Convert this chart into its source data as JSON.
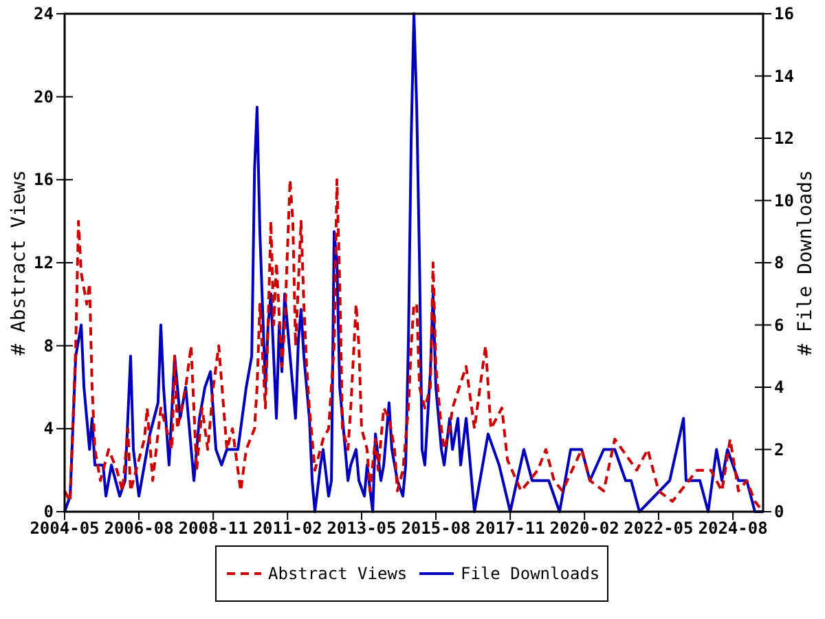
{
  "chart_data": {
    "type": "line",
    "ylabel": "# Abstract Views",
    "y2label": "# File Downloads",
    "xlim": [
      "2004-05",
      "2025-07"
    ],
    "xticks": [
      "2004-05",
      "2006-08",
      "2008-11",
      "2011-02",
      "2013-05",
      "2015-08",
      "2017-11",
      "2020-02",
      "2022-05",
      "2024-08"
    ],
    "ylim": [
      0,
      24
    ],
    "yticks": [
      0,
      4,
      8,
      12,
      16,
      20,
      24
    ],
    "y2lim": [
      0,
      16
    ],
    "y2ticks": [
      0,
      2,
      4,
      6,
      8,
      10,
      12,
      14,
      16
    ],
    "grid": false,
    "legend": "bottom",
    "series": [
      {
        "name": "Abstract Views",
        "color": "#cc0000",
        "line_style": "dashed",
        "axis": "y",
        "x": [
          "2004-05",
          "2004-07",
          "2004-09",
          "2004-10",
          "2004-11",
          "2005-01",
          "2005-02",
          "2005-03",
          "2005-04",
          "2005-06",
          "2005-07",
          "2005-09",
          "2005-12",
          "2006-02",
          "2006-04",
          "2006-05",
          "2006-07",
          "2006-10",
          "2006-11",
          "2007-01",
          "2007-04",
          "2007-08",
          "2007-09",
          "2007-10",
          "2008-01",
          "2008-03",
          "2008-05",
          "2008-07",
          "2008-09",
          "2008-11",
          "2009-01",
          "2009-04",
          "2009-06",
          "2009-09",
          "2009-11",
          "2010-02",
          "2010-03",
          "2010-04",
          "2010-06",
          "2010-07",
          "2010-08",
          "2010-09",
          "2010-10",
          "2010-12",
          "2011-01",
          "2011-03",
          "2011-04",
          "2011-05",
          "2011-06",
          "2011-07",
          "2011-08",
          "2011-09",
          "2011-10",
          "2011-12",
          "2012-03",
          "2012-05",
          "2012-07",
          "2012-08",
          "2012-09",
          "2012-10",
          "2012-12",
          "2013-01",
          "2013-03",
          "2013-04",
          "2013-05",
          "2013-07",
          "2013-08",
          "2013-10",
          "2013-11",
          "2014-01",
          "2014-03",
          "2014-05",
          "2014-06",
          "2014-08",
          "2014-10",
          "2014-11",
          "2014-12",
          "2015-01",
          "2015-02",
          "2015-04",
          "2015-06",
          "2015-07",
          "2015-08",
          "2015-10",
          "2015-11",
          "2016-01",
          "2016-02",
          "2016-07",
          "2016-10",
          "2017-02",
          "2017-04",
          "2017-08",
          "2017-10",
          "2018-03",
          "2018-09",
          "2018-12",
          "2019-03",
          "2019-06",
          "2020-01",
          "2020-04",
          "2020-09",
          "2021-01",
          "2021-09",
          "2022-01",
          "2022-05",
          "2022-10",
          "2023-07",
          "2023-12",
          "2024-04",
          "2024-07",
          "2024-10",
          "2025-01",
          "2025-04",
          "2025-07"
        ],
        "values": [
          1,
          0.5,
          8,
          14,
          11.5,
          10,
          11,
          6,
          3,
          1.5,
          2,
          3,
          2,
          1,
          4,
          1,
          2,
          3.5,
          5,
          1.5,
          5,
          3,
          7.5,
          4,
          6,
          8,
          2,
          5,
          3,
          6,
          8,
          3,
          4,
          1,
          3,
          4,
          6,
          10,
          5,
          9,
          14,
          9,
          12,
          7,
          9,
          16,
          14,
          8,
          11,
          14,
          10,
          7,
          5,
          2,
          3.5,
          4,
          8,
          16,
          11,
          4,
          3,
          5,
          10,
          8,
          4,
          3,
          1,
          3.5,
          2,
          5,
          4.5,
          3,
          1,
          2,
          5,
          8,
          10,
          10,
          6,
          5,
          6,
          12,
          7,
          4,
          3,
          4,
          5,
          7,
          4,
          8,
          4,
          5,
          2.5,
          1,
          2,
          3,
          1.5,
          1,
          3,
          1.5,
          1,
          3.5,
          2,
          3,
          1,
          0.5,
          2,
          2,
          1,
          3.5,
          1,
          1.5,
          0.5,
          0
        ]
      },
      {
        "name": "File Downloads",
        "color": "#0000bb",
        "line_style": "solid",
        "axis": "y2",
        "x": [
          "2004-05",
          "2004-07",
          "2004-09",
          "2004-11",
          "2004-12",
          "2005-02",
          "2005-03",
          "2005-04",
          "2005-07",
          "2005-08",
          "2005-10",
          "2006-01",
          "2006-03",
          "2006-05",
          "2006-06",
          "2006-08",
          "2006-10",
          "2006-12",
          "2007-03",
          "2007-04",
          "2007-05",
          "2007-07",
          "2007-09",
          "2007-11",
          "2008-01",
          "2008-02",
          "2008-04",
          "2008-06",
          "2008-08",
          "2008-10",
          "2008-12",
          "2009-02",
          "2009-04",
          "2009-06",
          "2009-08",
          "2009-11",
          "2010-01",
          "2010-02",
          "2010-03",
          "2010-04",
          "2010-06",
          "2010-07",
          "2010-08",
          "2010-10",
          "2010-11",
          "2010-12",
          "2011-01",
          "2011-03",
          "2011-05",
          "2011-06",
          "2011-07",
          "2011-08",
          "2011-10",
          "2011-11",
          "2011-12",
          "2012-02",
          "2012-03",
          "2012-05",
          "2012-06",
          "2012-07",
          "2012-08",
          "2012-09",
          "2012-11",
          "2012-12",
          "2013-01",
          "2013-03",
          "2013-04",
          "2013-06",
          "2013-07",
          "2013-09",
          "2013-10",
          "2013-12",
          "2014-01",
          "2014-03",
          "2014-04",
          "2014-06",
          "2014-08",
          "2014-09",
          "2014-10",
          "2014-11",
          "2014-12",
          "2015-01",
          "2015-02",
          "2015-03",
          "2015-04",
          "2015-06",
          "2015-07",
          "2015-08",
          "2015-10",
          "2015-11",
          "2016-01",
          "2016-02",
          "2016-04",
          "2016-05",
          "2016-07",
          "2016-10",
          "2017-03",
          "2017-07",
          "2017-11",
          "2018-04",
          "2018-07",
          "2019-01",
          "2019-05",
          "2019-09",
          "2020-01",
          "2020-04",
          "2020-09",
          "2021-01",
          "2021-05",
          "2021-07",
          "2021-10",
          "2022-09",
          "2023-02",
          "2023-03",
          "2023-08",
          "2023-11",
          "2024-02",
          "2024-04",
          "2024-06",
          "2024-10",
          "2025-01",
          "2025-04",
          "2025-07"
        ],
        "values": [
          0,
          0.5,
          5,
          6,
          4,
          2,
          3,
          1.5,
          1.5,
          0.5,
          1.5,
          0.5,
          1,
          5,
          2,
          0.5,
          1.5,
          2.5,
          3.5,
          6,
          4,
          1.5,
          5,
          3,
          4,
          3,
          1,
          3,
          4,
          4.5,
          2,
          1.5,
          2,
          2,
          2,
          4,
          5,
          11,
          13,
          9,
          4,
          6,
          7,
          3,
          6,
          4.5,
          7,
          5,
          3,
          5.5,
          6.5,
          5,
          3,
          1,
          0,
          1.5,
          2,
          0.5,
          1,
          9,
          8,
          4,
          2,
          1,
          1.5,
          2,
          1,
          0.5,
          1.5,
          0,
          2.5,
          1,
          1.5,
          3.5,
          2,
          1,
          0.5,
          1.5,
          5.5,
          12,
          16,
          13,
          8,
          2,
          1.5,
          4.5,
          7,
          4,
          2,
          1.5,
          3,
          2,
          3,
          1.5,
          3,
          0,
          2.5,
          1.5,
          0,
          2,
          1,
          1,
          0,
          2,
          2,
          1,
          2,
          2,
          1,
          1,
          0,
          1,
          3,
          1,
          1,
          0,
          2,
          1,
          2,
          1,
          1,
          0,
          0
        ]
      }
    ]
  }
}
